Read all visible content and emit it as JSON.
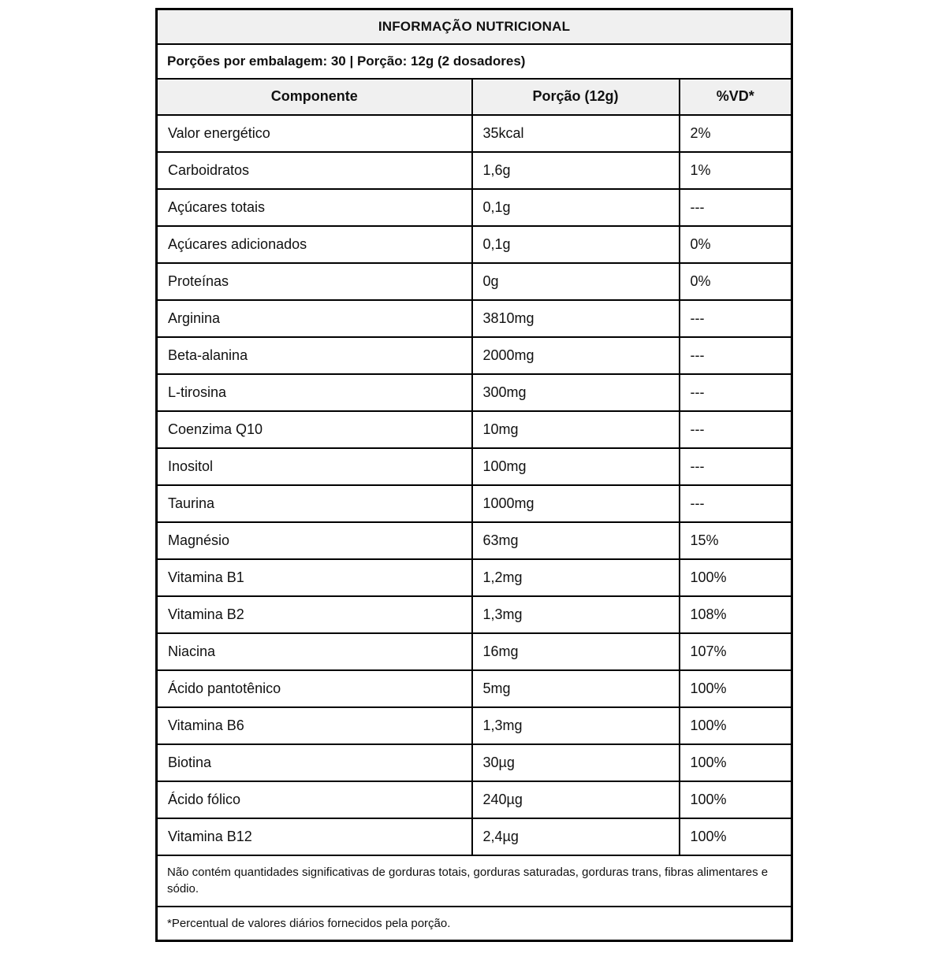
{
  "table": {
    "title": "INFORMAÇÃO NUTRICIONAL",
    "serving_info": "Porções por embalagem: 30 | Porção: 12g (2 dosadores)",
    "columns": [
      "Componente",
      "Porção (12g)",
      "%VD*"
    ],
    "rows": [
      [
        "Valor energético",
        "35kcal",
        "2%"
      ],
      [
        "Carboidratos",
        "1,6g",
        "1%"
      ],
      [
        "Açúcares totais",
        "0,1g",
        "---"
      ],
      [
        "Açúcares adicionados",
        "0,1g",
        "0%"
      ],
      [
        "Proteínas",
        "0g",
        "0%"
      ],
      [
        "Arginina",
        "3810mg",
        "---"
      ],
      [
        "Beta-alanina",
        "2000mg",
        "---"
      ],
      [
        "L-tirosina",
        "300mg",
        "---"
      ],
      [
        "Coenzima Q10",
        "10mg",
        "---"
      ],
      [
        "Inositol",
        "100mg",
        "---"
      ],
      [
        "Taurina",
        "1000mg",
        "---"
      ],
      [
        "Magnésio",
        "63mg",
        "15%"
      ],
      [
        "Vitamina B1",
        "1,2mg",
        "100%"
      ],
      [
        "Vitamina B2",
        "1,3mg",
        "108%"
      ],
      [
        "Niacina",
        "16mg",
        "107%"
      ],
      [
        "Ácido pantotênico",
        "5mg",
        "100%"
      ],
      [
        "Vitamina B6",
        "1,3mg",
        "100%"
      ],
      [
        "Biotina",
        "30µg",
        "100%"
      ],
      [
        "Ácido fólico",
        "240µg",
        "100%"
      ],
      [
        "Vitamina B12",
        "2,4µg",
        "100%"
      ]
    ],
    "notes": {
      "insignificant_amounts": "Não contém quantidades significativas de gorduras totais, gorduras saturadas, gorduras trans, fibras alimentares e sódio.",
      "daily_value_footnote": "*Percentual de valores diários fornecidos pela porção."
    },
    "colors": {
      "header_bg": "#f0f0f0",
      "row_bg": "#ffffff",
      "border": "#000000",
      "text": "#111111"
    }
  }
}
